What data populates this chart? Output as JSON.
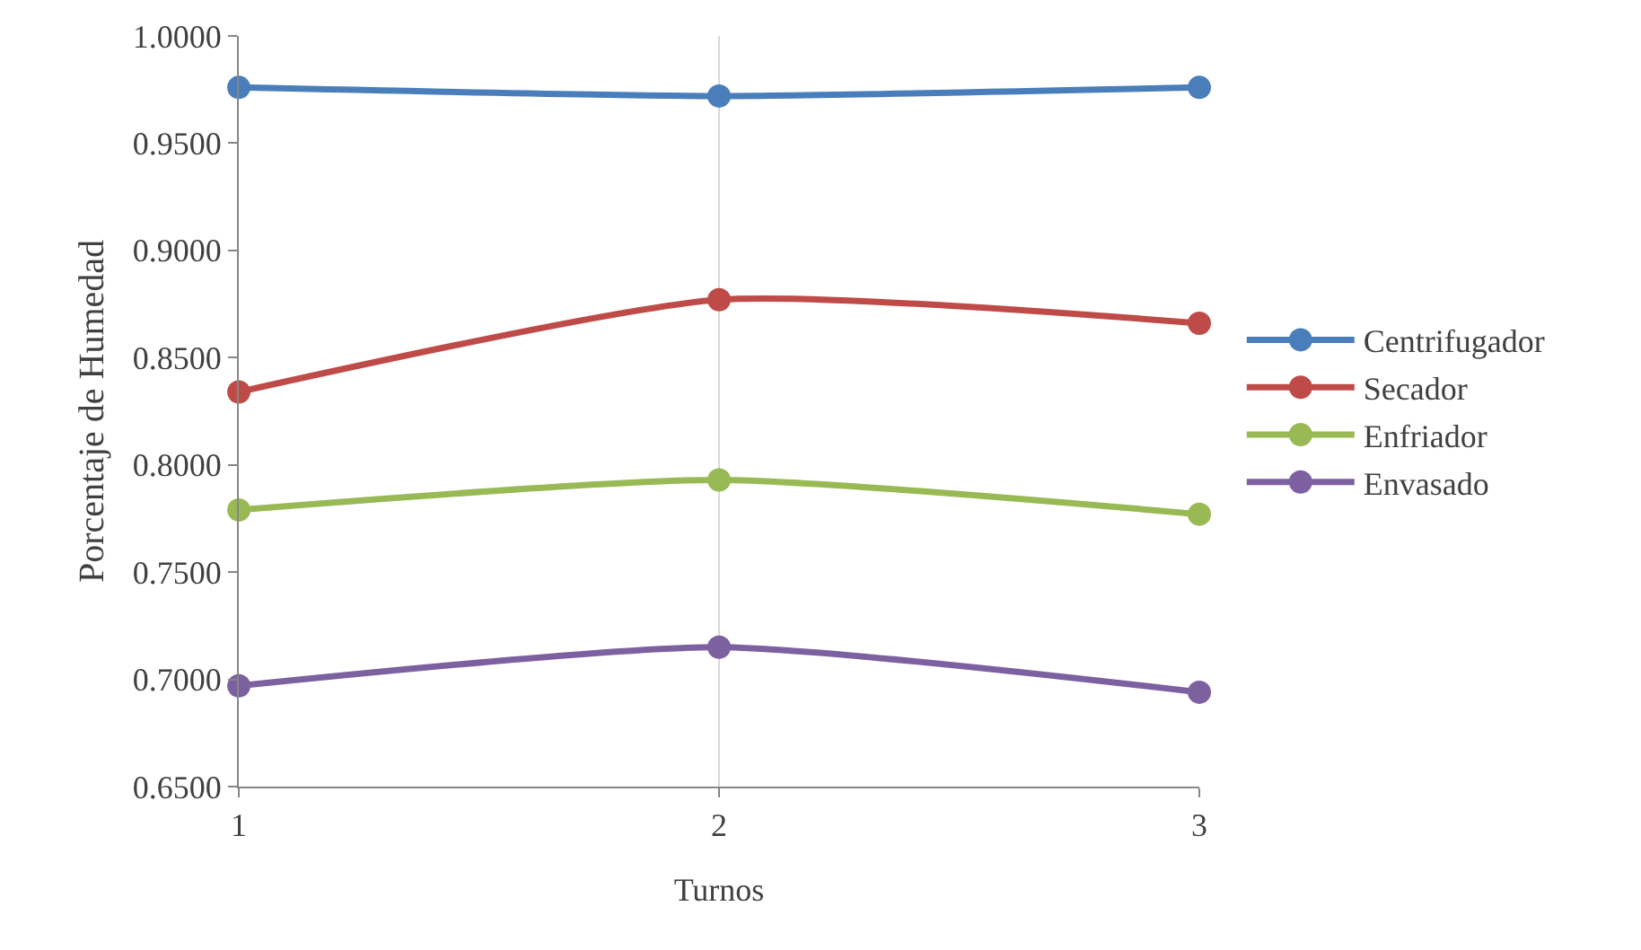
{
  "chart_data": {
    "type": "line",
    "xlabel": "Turnos",
    "ylabel": "Porcentaje de Humedad",
    "x": [
      1,
      2,
      3
    ],
    "series": [
      {
        "name": "Centrifugador",
        "color": "#4a7ebb",
        "values": [
          0.976,
          0.972,
          0.976
        ]
      },
      {
        "name": "Secador",
        "color": "#be4b48",
        "values": [
          0.834,
          0.877,
          0.866
        ]
      },
      {
        "name": "Enfriador",
        "color": "#98b954",
        "values": [
          0.779,
          0.793,
          0.777
        ]
      },
      {
        "name": "Envasado",
        "color": "#7d60a0",
        "values": [
          0.697,
          0.715,
          0.694
        ]
      }
    ],
    "xlim": [
      1,
      3
    ],
    "xticks": [
      1,
      2,
      3
    ],
    "ylim": [
      0.65,
      1.0
    ],
    "yticks": [
      {
        "value": 0.65,
        "label": "0.6500"
      },
      {
        "value": 0.7,
        "label": "0.7000"
      },
      {
        "value": 0.75,
        "label": "0.7500"
      },
      {
        "value": 0.8,
        "label": "0.8000"
      },
      {
        "value": 0.85,
        "label": "0.8500"
      },
      {
        "value": 0.9,
        "label": "0.9000"
      },
      {
        "value": 0.95,
        "label": "0.9500"
      },
      {
        "value": 1.0,
        "label": "1.0000"
      }
    ],
    "grid": "x",
    "legend": "right",
    "marker": "circle",
    "line_style": "solid"
  }
}
